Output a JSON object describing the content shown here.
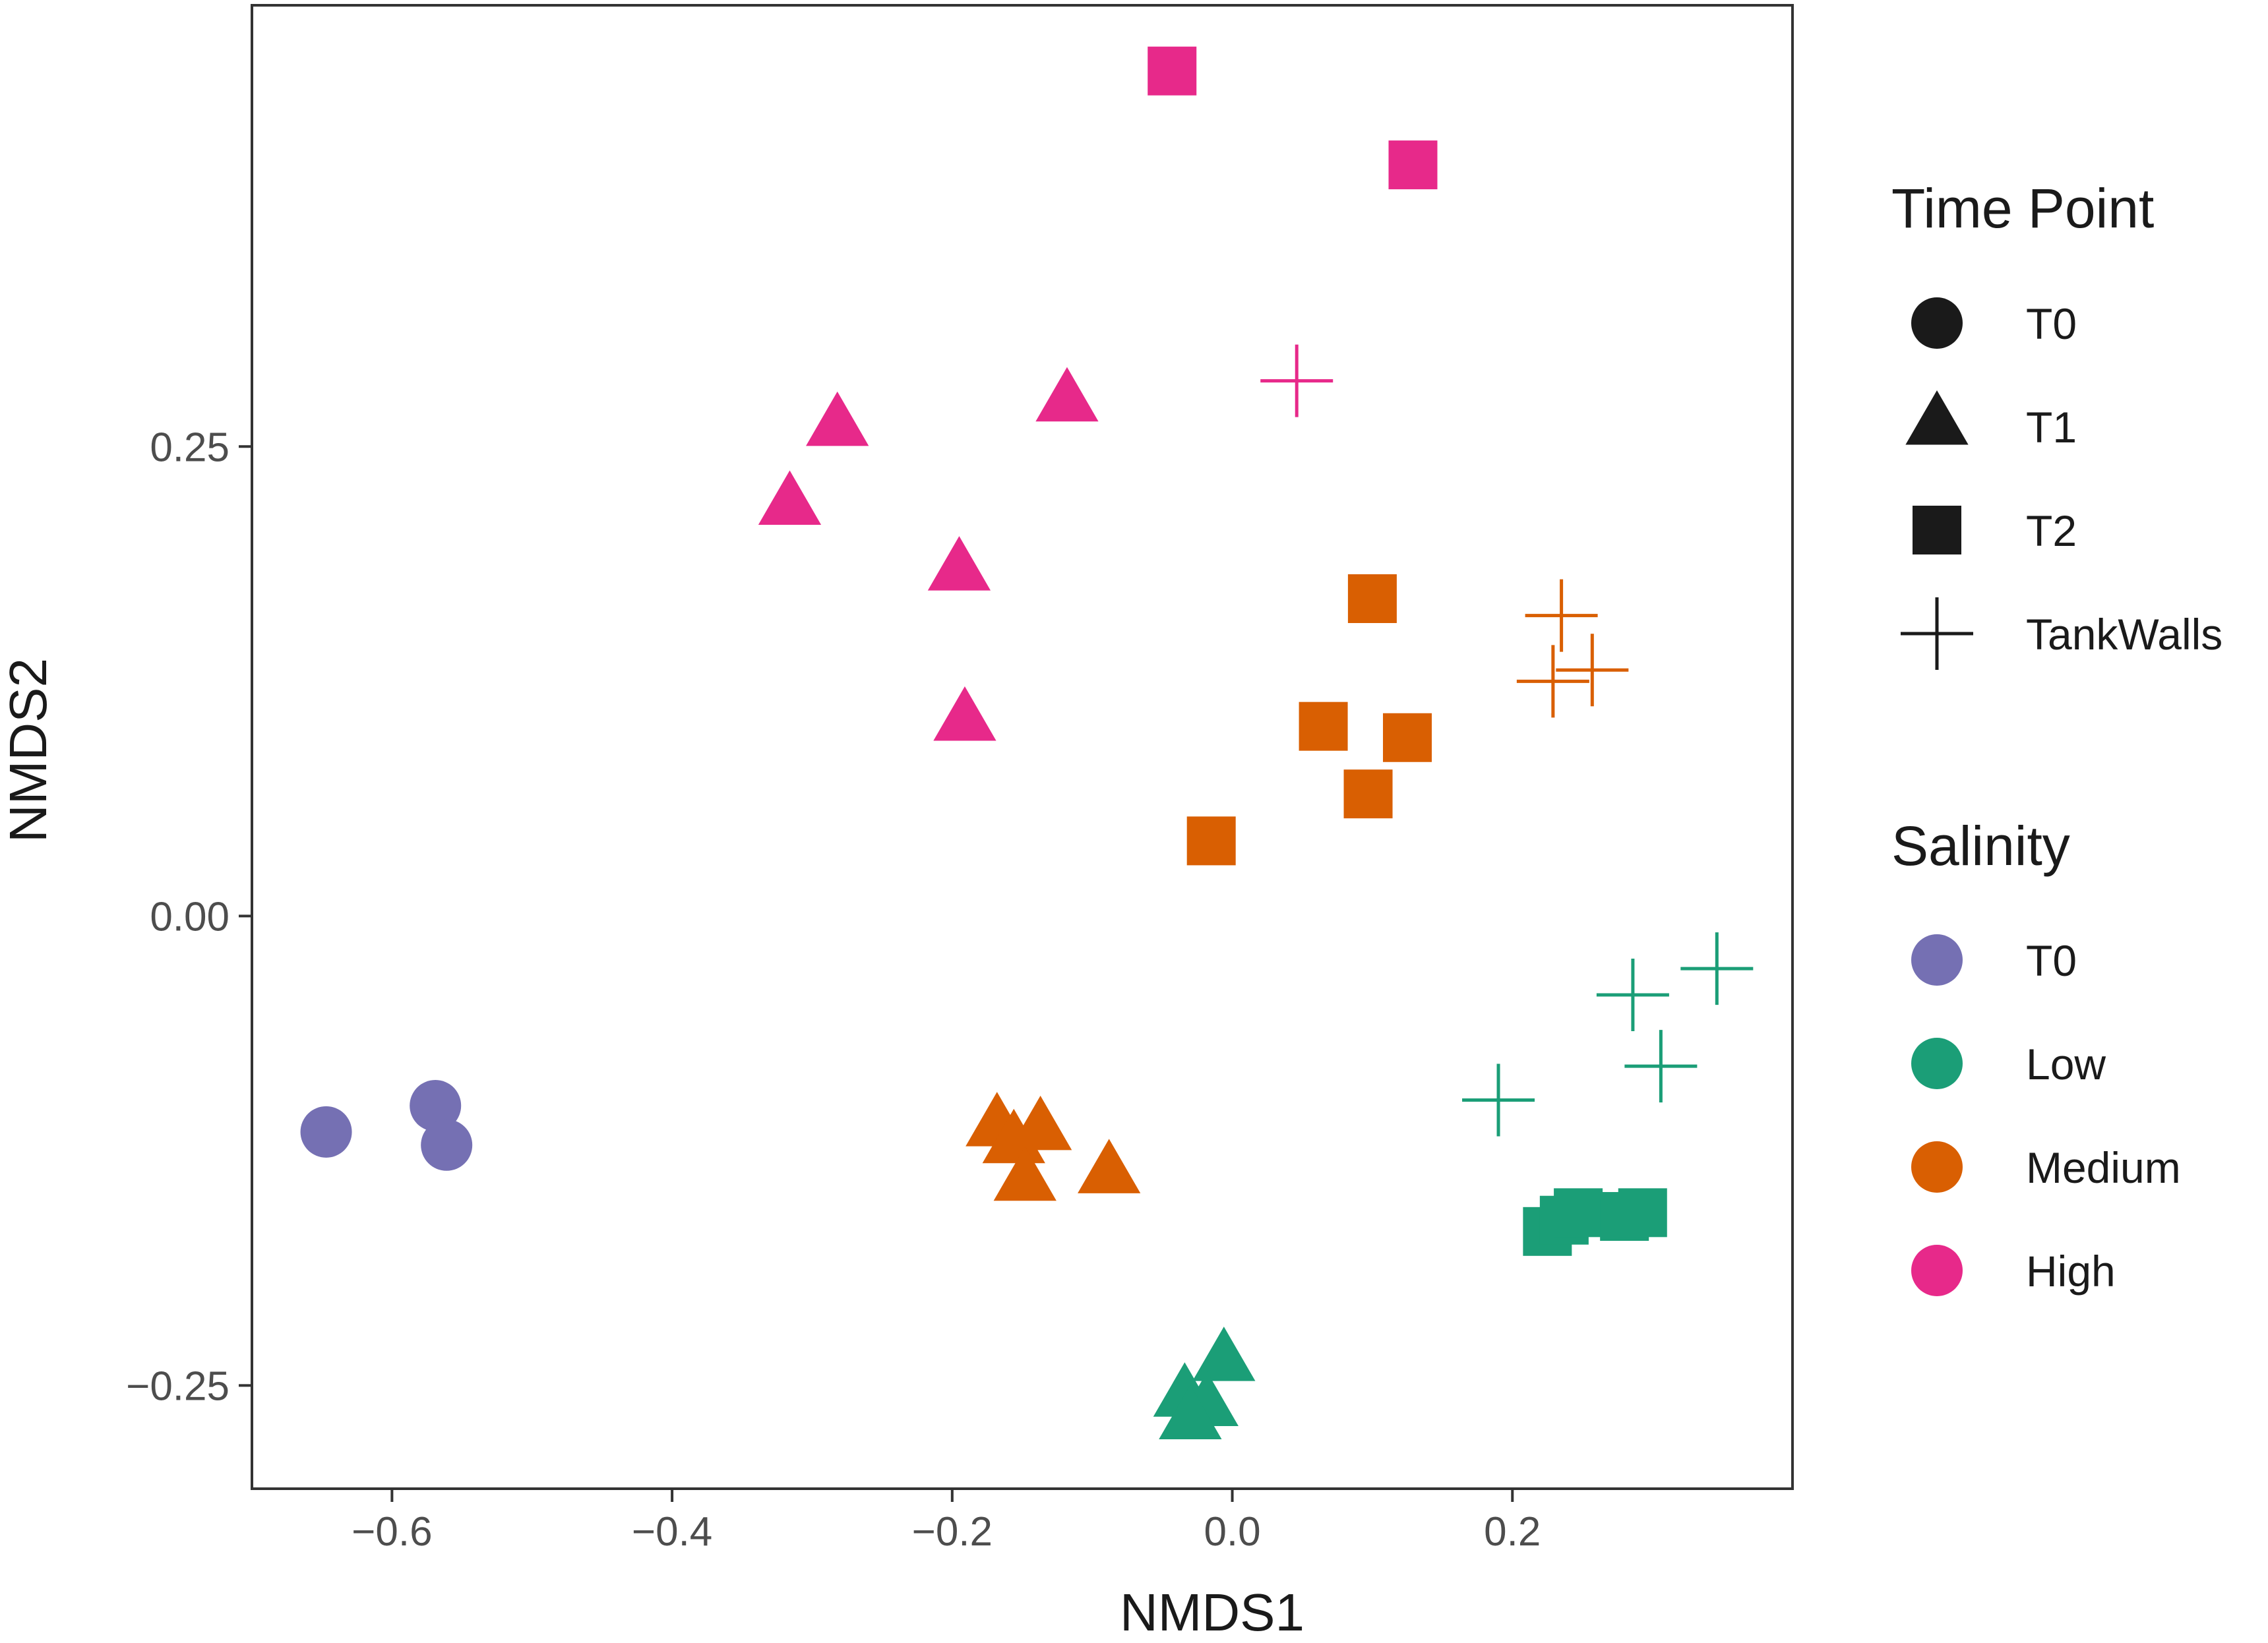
{
  "chart_data": {
    "type": "scatter",
    "title": "",
    "xlabel": "NMDS1",
    "ylabel": "NMDS2",
    "xlim": [
      -0.7,
      0.4
    ],
    "ylim": [
      -0.305,
      0.485
    ],
    "xticks": [
      -0.6,
      -0.4,
      -0.2,
      0.0,
      0.2
    ],
    "xtick_labels": [
      "−0.6",
      "−0.4",
      "−0.2",
      "0.0",
      "0.2"
    ],
    "yticks": [
      -0.25,
      0.0,
      0.25
    ],
    "ytick_labels": [
      "−0.25",
      "0.00",
      "0.25"
    ],
    "grid": false,
    "legend_position": "right",
    "legends": [
      {
        "title": "Time Point",
        "kind": "shape",
        "entries": [
          {
            "label": "T0",
            "shape": "circle"
          },
          {
            "label": "T1",
            "shape": "triangle"
          },
          {
            "label": "T2",
            "shape": "square"
          },
          {
            "label": "TankWalls",
            "shape": "cross"
          }
        ]
      },
      {
        "title": "Salinity",
        "kind": "color",
        "entries": [
          {
            "label": "T0",
            "color": "#7570b3"
          },
          {
            "label": "Low",
            "color": "#1b9e77"
          },
          {
            "label": "Medium",
            "color": "#d95f02"
          },
          {
            "label": "High",
            "color": "#e7298a"
          }
        ]
      }
    ],
    "colors": {
      "T0": "#7570b3",
      "Low": "#1b9e77",
      "Medium": "#d95f02",
      "High": "#e7298a"
    },
    "points": [
      {
        "x": -0.647,
        "y": -0.115,
        "shape": "circle",
        "salinity": "T0"
      },
      {
        "x": -0.569,
        "y": -0.101,
        "shape": "circle",
        "salinity": "T0"
      },
      {
        "x": -0.561,
        "y": -0.122,
        "shape": "circle",
        "salinity": "T0"
      },
      {
        "x": -0.282,
        "y": 0.26,
        "shape": "triangle",
        "salinity": "High"
      },
      {
        "x": -0.316,
        "y": 0.218,
        "shape": "triangle",
        "salinity": "High"
      },
      {
        "x": -0.118,
        "y": 0.273,
        "shape": "triangle",
        "salinity": "High"
      },
      {
        "x": -0.195,
        "y": 0.183,
        "shape": "triangle",
        "salinity": "High"
      },
      {
        "x": -0.191,
        "y": 0.103,
        "shape": "triangle",
        "salinity": "High"
      },
      {
        "x": -0.043,
        "y": 0.45,
        "shape": "square",
        "salinity": "High"
      },
      {
        "x": 0.129,
        "y": 0.4,
        "shape": "square",
        "salinity": "High"
      },
      {
        "x": 0.046,
        "y": 0.285,
        "shape": "cross",
        "salinity": "High"
      },
      {
        "x": 0.1,
        "y": 0.169,
        "shape": "square",
        "salinity": "Medium"
      },
      {
        "x": 0.065,
        "y": 0.101,
        "shape": "square",
        "salinity": "Medium"
      },
      {
        "x": 0.125,
        "y": 0.095,
        "shape": "square",
        "salinity": "Medium"
      },
      {
        "x": 0.097,
        "y": 0.065,
        "shape": "square",
        "salinity": "Medium"
      },
      {
        "x": -0.015,
        "y": 0.04,
        "shape": "square",
        "salinity": "Medium"
      },
      {
        "x": 0.235,
        "y": 0.16,
        "shape": "cross",
        "salinity": "Medium"
      },
      {
        "x": 0.229,
        "y": 0.125,
        "shape": "cross",
        "salinity": "Medium"
      },
      {
        "x": 0.257,
        "y": 0.131,
        "shape": "cross",
        "salinity": "Medium"
      },
      {
        "x": -0.168,
        "y": -0.113,
        "shape": "triangle",
        "salinity": "Medium"
      },
      {
        "x": -0.156,
        "y": -0.122,
        "shape": "triangle",
        "salinity": "Medium"
      },
      {
        "x": -0.137,
        "y": -0.115,
        "shape": "triangle",
        "salinity": "Medium"
      },
      {
        "x": -0.148,
        "y": -0.142,
        "shape": "triangle",
        "salinity": "Medium"
      },
      {
        "x": -0.088,
        "y": -0.138,
        "shape": "triangle",
        "salinity": "Medium"
      },
      {
        "x": 0.346,
        "y": -0.028,
        "shape": "cross",
        "salinity": "Low"
      },
      {
        "x": 0.286,
        "y": -0.042,
        "shape": "cross",
        "salinity": "Low"
      },
      {
        "x": 0.306,
        "y": -0.08,
        "shape": "cross",
        "salinity": "Low"
      },
      {
        "x": 0.19,
        "y": -0.098,
        "shape": "cross",
        "salinity": "Low"
      },
      {
        "x": 0.225,
        "y": -0.168,
        "shape": "square",
        "salinity": "Low"
      },
      {
        "x": 0.237,
        "y": -0.162,
        "shape": "square",
        "salinity": "Low"
      },
      {
        "x": 0.247,
        "y": -0.158,
        "shape": "square",
        "salinity": "Low"
      },
      {
        "x": 0.28,
        "y": -0.16,
        "shape": "square",
        "salinity": "Low"
      },
      {
        "x": 0.293,
        "y": -0.158,
        "shape": "square",
        "salinity": "Low"
      },
      {
        "x": -0.006,
        "y": -0.238,
        "shape": "triangle",
        "salinity": "Low"
      },
      {
        "x": -0.034,
        "y": -0.257,
        "shape": "triangle",
        "salinity": "Low"
      },
      {
        "x": -0.018,
        "y": -0.262,
        "shape": "triangle",
        "salinity": "Low"
      },
      {
        "x": -0.03,
        "y": -0.269,
        "shape": "triangle",
        "salinity": "Low"
      }
    ]
  }
}
